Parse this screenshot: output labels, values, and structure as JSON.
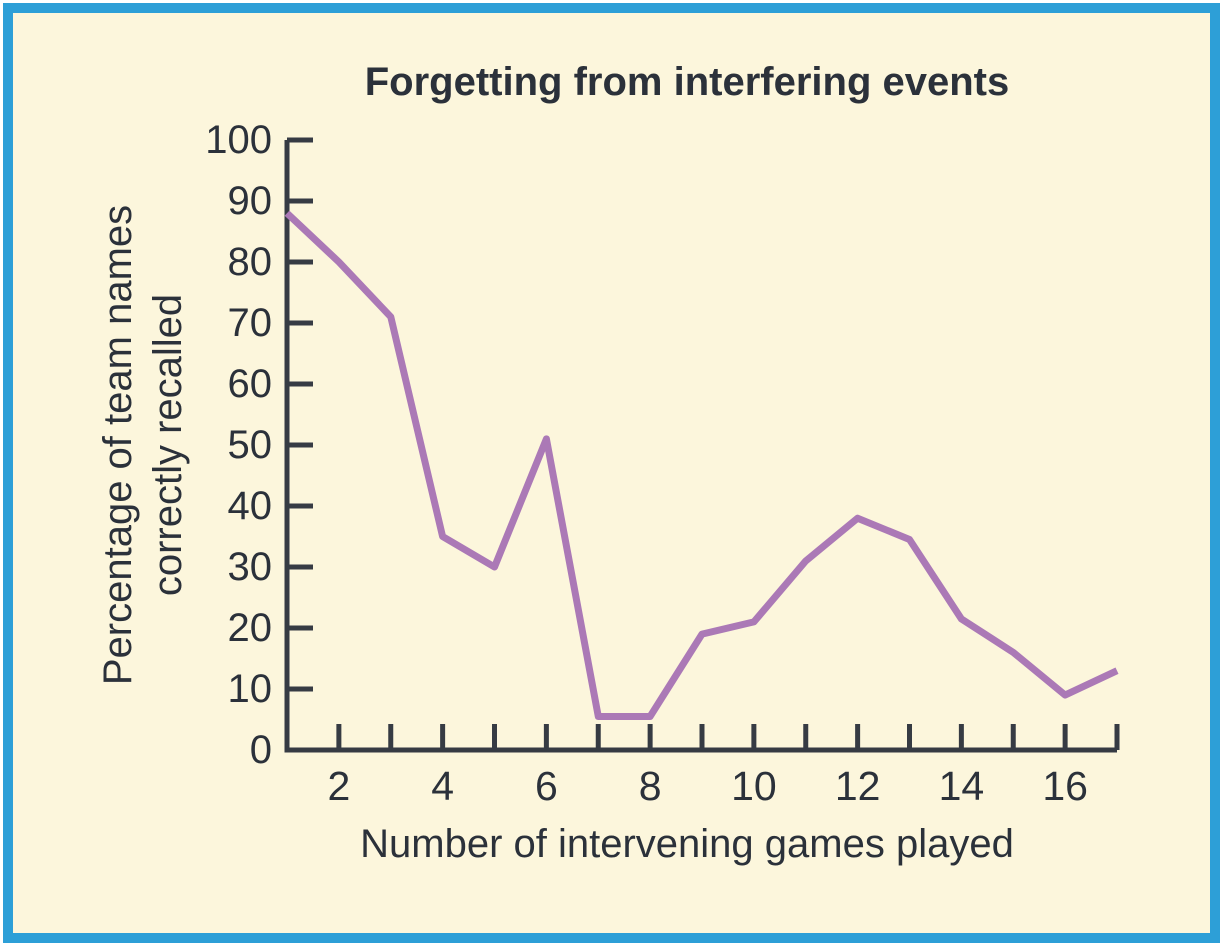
{
  "chart_data": {
    "type": "line",
    "title": "Forgetting from interfering events",
    "xlabel": "Number of intervening games played",
    "ylabel": "Percentage of team names\ncorrectly recalled",
    "x": [
      1,
      2,
      3,
      4,
      5,
      6,
      7,
      8,
      9,
      10,
      11,
      12,
      13,
      14,
      15,
      16,
      17
    ],
    "values": [
      88,
      80,
      71,
      35,
      30,
      51,
      5.5,
      5.5,
      19,
      21,
      31,
      38,
      34.5,
      21.5,
      16,
      9,
      13
    ],
    "series_name": "Percentage of team names correctly recalled",
    "xlim": [
      1,
      17
    ],
    "ylim": [
      0,
      100
    ],
    "x_ticks": [
      2,
      3,
      4,
      5,
      6,
      7,
      8,
      9,
      10,
      11,
      12,
      13,
      14,
      15,
      16,
      17
    ],
    "x_tick_labels": [
      2,
      4,
      6,
      8,
      10,
      12,
      14,
      16
    ],
    "y_ticks": [
      0,
      10,
      20,
      30,
      40,
      50,
      60,
      70,
      80,
      90,
      100
    ],
    "y_tick_labels": [
      "0",
      "10",
      "20",
      "30",
      "40",
      "50",
      "60",
      "70",
      "80",
      "90",
      "100"
    ],
    "grid": false,
    "legend": null,
    "line_color": "#ab79b6",
    "axis_color": "#363b43",
    "background_color": "#fcf6dc",
    "frame_border_color": "#2d9fd7",
    "text_color": "#2b313a"
  }
}
